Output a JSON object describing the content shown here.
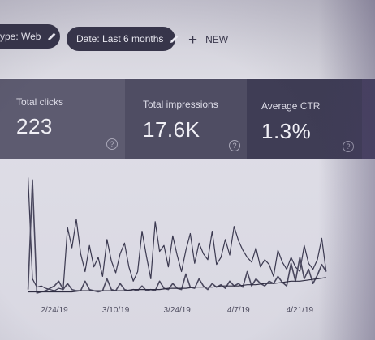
{
  "filters": {
    "type_chip": "ype: Web",
    "date_chip": "Date: Last 6 months",
    "new_button": "NEW"
  },
  "metrics": [
    {
      "label": "Total clicks",
      "value": "223"
    },
    {
      "label": "Total impressions",
      "value": "17.6K"
    },
    {
      "label": "Average CTR",
      "value": "1.3%"
    }
  ],
  "help_glyph": "?",
  "chart_data": {
    "type": "line",
    "x_tick_labels": [
      "2/24/19",
      "3/10/19",
      "3/24/19",
      "4/7/19",
      "4/21/19"
    ],
    "x_tick_positions": [
      0,
      14,
      28,
      42,
      56
    ],
    "y_range": [
      0,
      100
    ],
    "grid": false,
    "legend": "none",
    "series": [
      {
        "color": "#3b3950",
        "points": [
          [
            -6,
            97
          ],
          [
            -5,
            12
          ],
          [
            -4,
            5
          ],
          [
            -3,
            6
          ],
          [
            -2,
            4
          ],
          [
            -1,
            3
          ],
          [
            0,
            2
          ],
          [
            1,
            4
          ],
          [
            2,
            3
          ],
          [
            3,
            55
          ],
          [
            4,
            38
          ],
          [
            5,
            62
          ],
          [
            6,
            33
          ],
          [
            7,
            18
          ],
          [
            8,
            40
          ],
          [
            9,
            22
          ],
          [
            10,
            30
          ],
          [
            11,
            14
          ],
          [
            12,
            45
          ],
          [
            13,
            27
          ],
          [
            14,
            17
          ],
          [
            15,
            33
          ],
          [
            16,
            42
          ],
          [
            17,
            22
          ],
          [
            18,
            10
          ],
          [
            19,
            18
          ],
          [
            20,
            52
          ],
          [
            21,
            31
          ],
          [
            22,
            12
          ],
          [
            23,
            60
          ],
          [
            24,
            35
          ],
          [
            25,
            40
          ],
          [
            26,
            22
          ],
          [
            27,
            48
          ],
          [
            28,
            32
          ],
          [
            29,
            18
          ],
          [
            30,
            36
          ],
          [
            31,
            50
          ],
          [
            32,
            25
          ],
          [
            33,
            42
          ],
          [
            34,
            33
          ],
          [
            35,
            28
          ],
          [
            36,
            52
          ],
          [
            37,
            24
          ],
          [
            38,
            30
          ],
          [
            39,
            45
          ],
          [
            40,
            32
          ],
          [
            41,
            56
          ],
          [
            42,
            44
          ],
          [
            43,
            36
          ],
          [
            44,
            30
          ],
          [
            45,
            26
          ],
          [
            46,
            38
          ],
          [
            47,
            22
          ],
          [
            48,
            28
          ],
          [
            49,
            24
          ],
          [
            50,
            14
          ],
          [
            51,
            36
          ],
          [
            52,
            26
          ],
          [
            53,
            20
          ],
          [
            54,
            30
          ],
          [
            55,
            22
          ],
          [
            56,
            18
          ],
          [
            57,
            40
          ],
          [
            58,
            25
          ],
          [
            59,
            20
          ],
          [
            60,
            28
          ],
          [
            61,
            46
          ],
          [
            62,
            18
          ]
        ]
      },
      {
        "color": "#4a485e",
        "points": [
          [
            -6,
            3
          ],
          [
            -5,
            95
          ],
          [
            -4,
            0
          ],
          [
            -3,
            1
          ],
          [
            -2,
            2
          ],
          [
            -1,
            4
          ],
          [
            0,
            6
          ],
          [
            1,
            10
          ],
          [
            2,
            3
          ],
          [
            3,
            8
          ],
          [
            4,
            3
          ],
          [
            5,
            2
          ],
          [
            6,
            2
          ],
          [
            7,
            10
          ],
          [
            8,
            3
          ],
          [
            9,
            2
          ],
          [
            10,
            1
          ],
          [
            11,
            2
          ],
          [
            12,
            12
          ],
          [
            13,
            3
          ],
          [
            14,
            2
          ],
          [
            15,
            8
          ],
          [
            16,
            3
          ],
          [
            17,
            2
          ],
          [
            18,
            3
          ],
          [
            19,
            2
          ],
          [
            20,
            6
          ],
          [
            21,
            2
          ],
          [
            22,
            3
          ],
          [
            23,
            2
          ],
          [
            24,
            10
          ],
          [
            25,
            4
          ],
          [
            26,
            3
          ],
          [
            27,
            8
          ],
          [
            28,
            4
          ],
          [
            29,
            3
          ],
          [
            30,
            16
          ],
          [
            31,
            5
          ],
          [
            32,
            4
          ],
          [
            33,
            12
          ],
          [
            34,
            6
          ],
          [
            35,
            3
          ],
          [
            36,
            8
          ],
          [
            37,
            5
          ],
          [
            38,
            7
          ],
          [
            39,
            4
          ],
          [
            40,
            10
          ],
          [
            41,
            6
          ],
          [
            42,
            8
          ],
          [
            43,
            5
          ],
          [
            44,
            18
          ],
          [
            45,
            6
          ],
          [
            46,
            12
          ],
          [
            47,
            8
          ],
          [
            48,
            6
          ],
          [
            49,
            10
          ],
          [
            50,
            8
          ],
          [
            51,
            14
          ],
          [
            52,
            9
          ],
          [
            53,
            6
          ],
          [
            54,
            25
          ],
          [
            55,
            10
          ],
          [
            56,
            30
          ],
          [
            57,
            12
          ],
          [
            58,
            20
          ],
          [
            59,
            8
          ],
          [
            60,
            15
          ],
          [
            61,
            24
          ],
          [
            62,
            18
          ]
        ]
      },
      {
        "color": "#2f2d42",
        "points": [
          [
            -6,
            1
          ],
          [
            -4,
            1
          ],
          [
            -2,
            1
          ],
          [
            0,
            1
          ],
          [
            2,
            1
          ],
          [
            4,
            1
          ],
          [
            6,
            2
          ],
          [
            8,
            2
          ],
          [
            10,
            2
          ],
          [
            12,
            2
          ],
          [
            14,
            2
          ],
          [
            16,
            2
          ],
          [
            18,
            3
          ],
          [
            20,
            3
          ],
          [
            22,
            3
          ],
          [
            24,
            3
          ],
          [
            26,
            4
          ],
          [
            28,
            4
          ],
          [
            30,
            4
          ],
          [
            32,
            5
          ],
          [
            34,
            5
          ],
          [
            36,
            5
          ],
          [
            38,
            6
          ],
          [
            40,
            6
          ],
          [
            42,
            6
          ],
          [
            44,
            7
          ],
          [
            46,
            7
          ],
          [
            48,
            8
          ],
          [
            50,
            8
          ],
          [
            52,
            9
          ],
          [
            54,
            10
          ],
          [
            56,
            10
          ],
          [
            58,
            11
          ],
          [
            60,
            12
          ],
          [
            62,
            13
          ]
        ]
      }
    ]
  }
}
